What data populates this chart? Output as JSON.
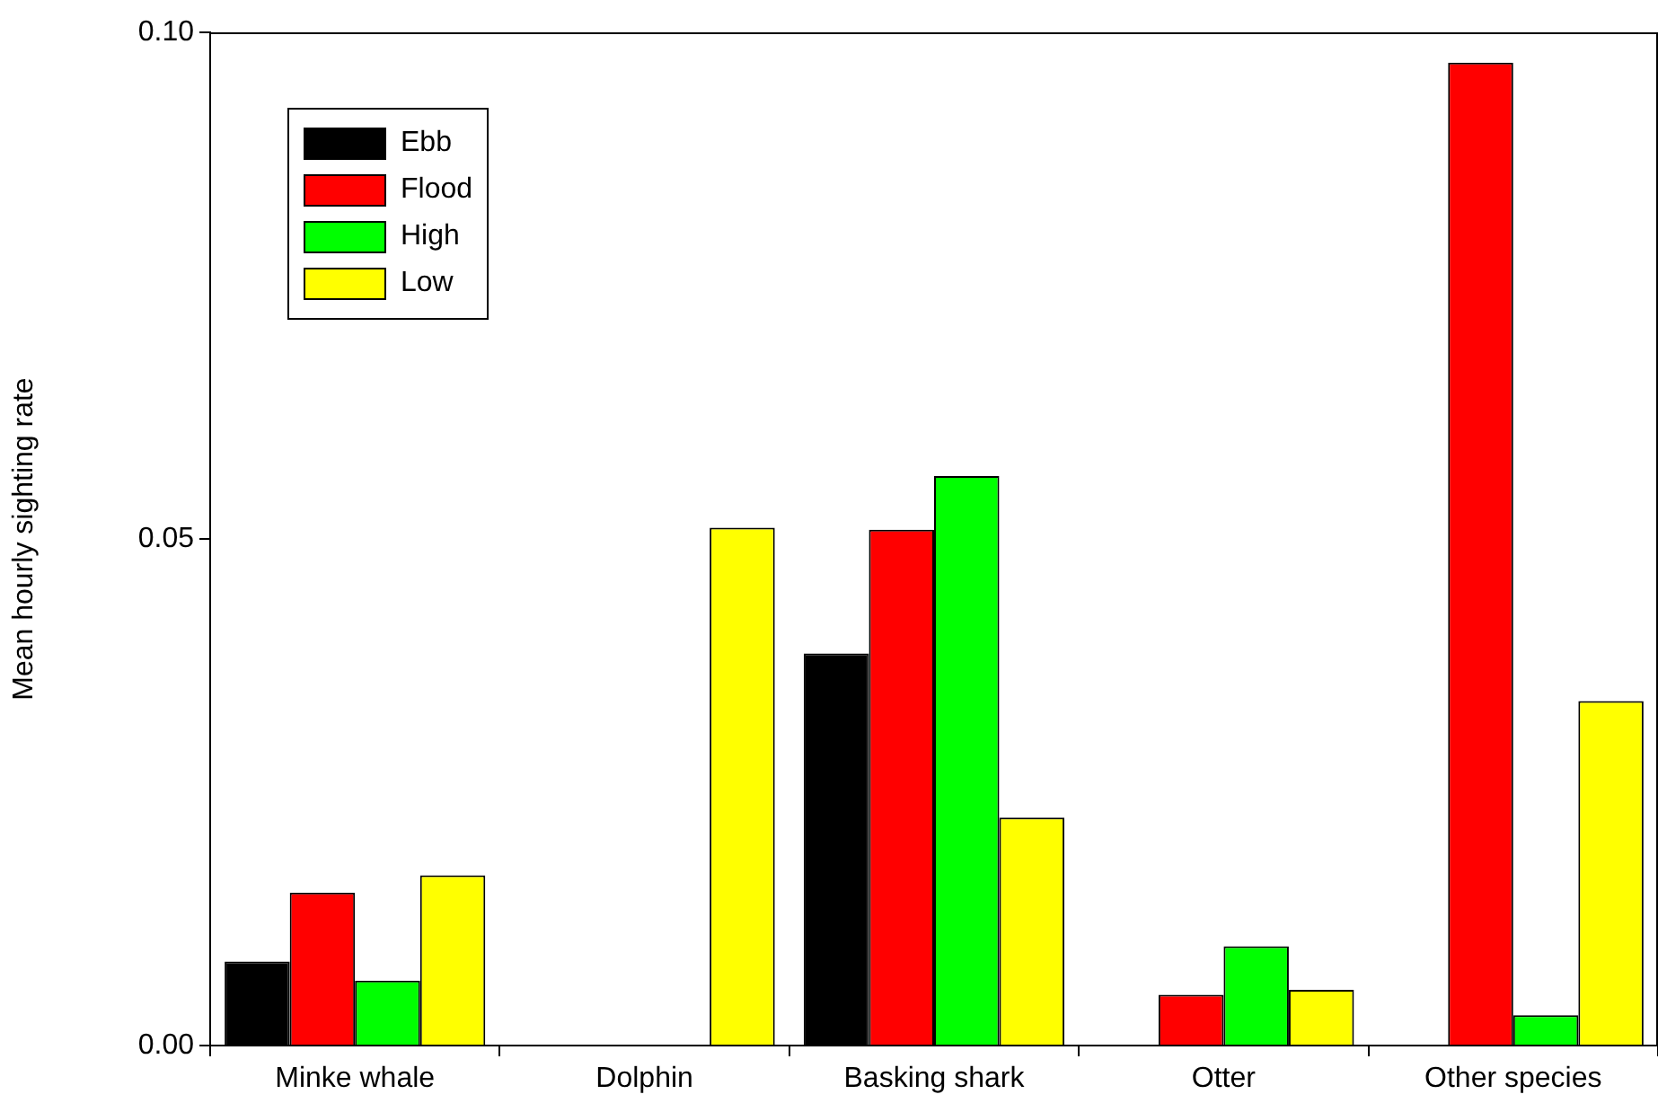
{
  "chart_data": {
    "type": "bar",
    "ylabel": "Mean hourly sighting rate",
    "categories": [
      "Minke whale",
      "Dolphin",
      "Basking shark",
      "Otter",
      "Other species"
    ],
    "series": [
      {
        "name": "Ebb",
        "color": "#000000",
        "values": [
          0.0083,
          0,
          0.0387,
          0,
          0
        ]
      },
      {
        "name": "Flood",
        "color": "#ff0000",
        "values": [
          0.0151,
          0,
          0.0509,
          0.005,
          0.097
        ]
      },
      {
        "name": "High",
        "color": "#00ff00",
        "values": [
          0.0064,
          0,
          0.0562,
          0.0098,
          0.003
        ]
      },
      {
        "name": "Low",
        "color": "#ffff00",
        "values": [
          0.0168,
          0.0511,
          0.0225,
          0.0055,
          0.034
        ]
      }
    ],
    "ylim": [
      0,
      0.1
    ],
    "yticks": [
      {
        "value": 0,
        "label": "0.00"
      },
      {
        "value": 0.05,
        "label": "0.05"
      },
      {
        "value": 0.1,
        "label": "0.10"
      }
    ],
    "grid": false,
    "legend": "top left"
  }
}
